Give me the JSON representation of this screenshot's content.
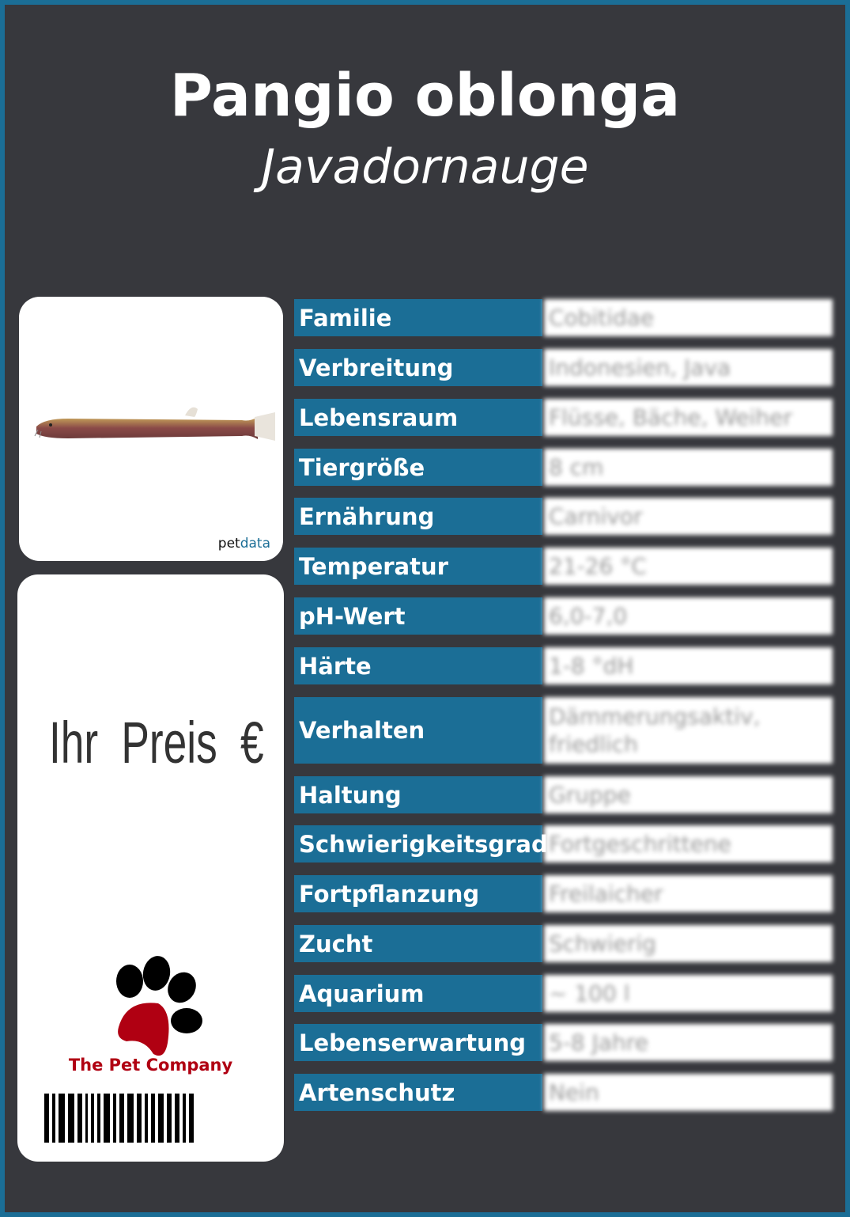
{
  "title": "Pangio oblonga",
  "subtitle": "Javadornauge",
  "image_card": {
    "watermark_a": "pet",
    "watermark_b": "data"
  },
  "price_card": {
    "price_label": "Ihr Preis €",
    "company": "The Pet Company"
  },
  "colors": {
    "background": "#37383d",
    "accent": "#1b6e96",
    "brand_red": "#b00012"
  },
  "rows": [
    {
      "label": "Familie",
      "value": "Cobitidae"
    },
    {
      "label": "Verbreitung",
      "value": "Indonesien, Java"
    },
    {
      "label": "Lebensraum",
      "value": "Flüsse, Bäche, Weiher"
    },
    {
      "label": "Tiergröße",
      "value": "8 cm"
    },
    {
      "label": "Ernährung",
      "value": "Carnivor"
    },
    {
      "label": "Temperatur",
      "value": "21-26 °C"
    },
    {
      "label": "pH-Wert",
      "value": "6,0-7,0"
    },
    {
      "label": "Härte",
      "value": "1-8 °dH"
    },
    {
      "label": "Verhalten",
      "value": "Dämmerungsaktiv, friedlich"
    },
    {
      "label": "Haltung",
      "value": "Gruppe"
    },
    {
      "label": "Schwierigkeitsgrad",
      "value": "Fortgeschrittene"
    },
    {
      "label": "Fortpflanzung",
      "value": "Freilaicher"
    },
    {
      "label": "Zucht",
      "value": "Schwierig"
    },
    {
      "label": "Aquarium",
      "value": "~ 100 l"
    },
    {
      "label": "Lebenserwartung",
      "value": "5-8 Jahre"
    },
    {
      "label": "Artenschutz",
      "value": "Nein"
    }
  ]
}
